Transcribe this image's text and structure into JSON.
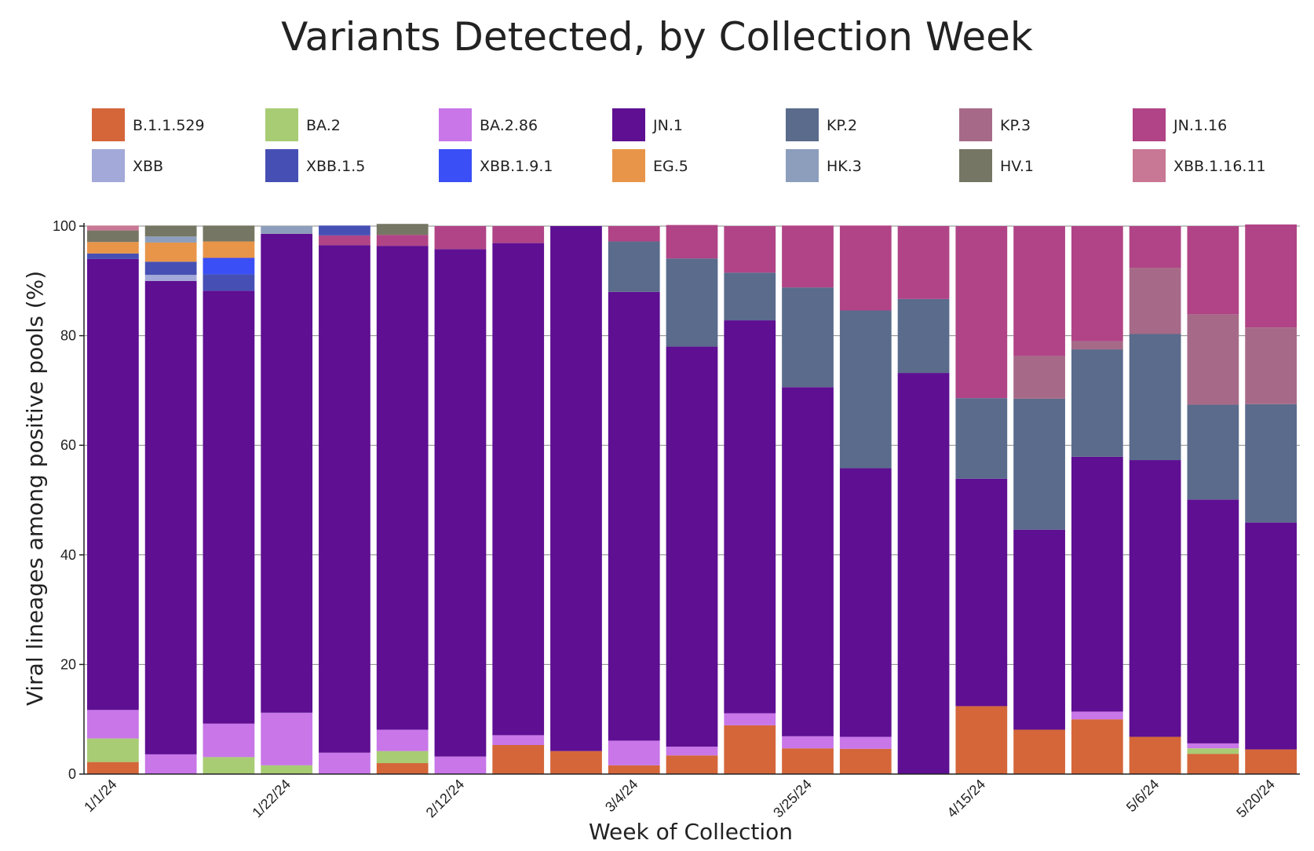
{
  "chart_data": {
    "type": "bar",
    "stacked": true,
    "title": "Variants Detected, by Collection Week",
    "xlabel": "Week of Collection",
    "ylabel": "Viral lineages among positive pools (%)",
    "ylim": [
      0,
      100
    ],
    "y_ticks": [
      "0",
      "20",
      "40",
      "60",
      "80",
      "100"
    ],
    "grid": "horizontal",
    "legend_position": "top",
    "categories": [
      "1/1/24",
      "1/8/24",
      "1/15/24",
      "1/22/24",
      "1/29/24",
      "2/5/24",
      "2/12/24",
      "2/19/24",
      "2/26/24",
      "3/4/24",
      "3/11/24",
      "3/18/24",
      "3/25/24",
      "4/1/24",
      "4/8/24",
      "4/15/24",
      "4/22/24",
      "4/29/24",
      "5/6/24",
      "5/13/24",
      "5/20/24"
    ],
    "x_tick_labels": [
      "1/1/24",
      "",
      "",
      "1/22/24",
      "",
      "",
      "2/12/24",
      "",
      "",
      "3/4/24",
      "",
      "",
      "3/25/24",
      "",
      "",
      "4/15/24",
      "",
      "",
      "5/6/24",
      "",
      "5/20/24"
    ],
    "series": [
      {
        "name": "B.1.1.529",
        "color": "#d4663a",
        "values": [
          2.2,
          0,
          0,
          0,
          0,
          2.0,
          0,
          5.3,
          4.2,
          1.6,
          3.4,
          8.9,
          4.7,
          4.6,
          0,
          12.4,
          8.1,
          10.0,
          6.8,
          3.7,
          4.5
        ]
      },
      {
        "name": "BA.2",
        "color": "#a8cc74",
        "values": [
          4.3,
          0,
          3.1,
          1.6,
          0,
          2.2,
          0,
          0,
          0,
          0,
          0,
          0,
          0,
          0,
          0,
          0,
          0,
          0,
          0,
          1.0,
          0
        ]
      },
      {
        "name": "BA.2.86",
        "color": "#c876e8",
        "values": [
          5.2,
          3.6,
          6.1,
          9.6,
          3.9,
          3.9,
          3.2,
          1.8,
          0,
          4.5,
          1.6,
          2.2,
          2.2,
          2.2,
          0,
          0,
          0,
          1.4,
          0,
          0.9,
          0
        ]
      },
      {
        "name": "JN.1",
        "color": "#5e0f92",
        "values": [
          82.3,
          86.4,
          79.0,
          87.4,
          92.6,
          88.3,
          92.6,
          89.8,
          95.8,
          81.9,
          73.0,
          71.7,
          63.7,
          49.0,
          73.2,
          41.5,
          36.5,
          46.5,
          50.5,
          44.5,
          41.4
        ]
      },
      {
        "name": "KP.2",
        "color": "#5a6b8c",
        "values": [
          0,
          0,
          0,
          0,
          0,
          0,
          0,
          0,
          0,
          9.2,
          16.1,
          8.7,
          18.2,
          28.8,
          13.5,
          14.7,
          23.9,
          19.6,
          23.0,
          17.3,
          21.6
        ]
      },
      {
        "name": "KP.3",
        "color": "#a66a88",
        "values": [
          0,
          0,
          0,
          0,
          0,
          0,
          0,
          0,
          0,
          0,
          0,
          0,
          0,
          0,
          0,
          0,
          7.8,
          1.5,
          12.1,
          16.5,
          14.0
        ]
      },
      {
        "name": "JN.1.16",
        "color": "#b04486",
        "values": [
          0,
          0,
          0,
          0,
          1.8,
          2.0,
          4.2,
          3.1,
          0,
          2.8,
          6.1,
          8.5,
          11.3,
          15.5,
          13.3,
          31.4,
          23.7,
          21.0,
          7.6,
          16.1,
          18.8
        ]
      },
      {
        "name": "XBB",
        "color": "#a3a9d8",
        "values": [
          0,
          1.1,
          0,
          0,
          0,
          0,
          0,
          0,
          0,
          0,
          0,
          0,
          0,
          0,
          0,
          0,
          0,
          0,
          0,
          0,
          0
        ]
      },
      {
        "name": "XBB.1.5",
        "color": "#4650b4",
        "values": [
          1.0,
          2.4,
          3.0,
          0,
          1.8,
          0,
          0,
          0,
          0,
          0,
          0,
          0,
          0,
          0,
          0,
          0,
          0,
          0,
          0,
          0,
          0
        ]
      },
      {
        "name": "XBB.1.9.1",
        "color": "#3a4ff5",
        "values": [
          0,
          0,
          3.0,
          0,
          0,
          0,
          0,
          0,
          0,
          0,
          0,
          0,
          0,
          0,
          0,
          0,
          0,
          0,
          0,
          0,
          0
        ]
      },
      {
        "name": "EG.5",
        "color": "#e8954a",
        "values": [
          2.1,
          3.5,
          3.0,
          0,
          0,
          0,
          0,
          0,
          0,
          0,
          0,
          0,
          0,
          0,
          0,
          0,
          0,
          0,
          0,
          0,
          0
        ]
      },
      {
        "name": "HK.3",
        "color": "#8c9ebc",
        "values": [
          0,
          1.1,
          0,
          1.4,
          0,
          0,
          0,
          0,
          0,
          0,
          0,
          0,
          0,
          0,
          0,
          0,
          0,
          0,
          0,
          0,
          0
        ]
      },
      {
        "name": "HV.1",
        "color": "#767664",
        "values": [
          2.1,
          2.0,
          2.9,
          0,
          0,
          2.0,
          0,
          0,
          0,
          0,
          0,
          0,
          0,
          0,
          0,
          0,
          0,
          0,
          0,
          0,
          0
        ]
      },
      {
        "name": "XBB.1.16.11",
        "color": "#c87894",
        "values": [
          0.9,
          0,
          0,
          0,
          0,
          0,
          0,
          0,
          0,
          0,
          0,
          0,
          0,
          0,
          0,
          0,
          0,
          0,
          0,
          0,
          0
        ]
      }
    ]
  }
}
